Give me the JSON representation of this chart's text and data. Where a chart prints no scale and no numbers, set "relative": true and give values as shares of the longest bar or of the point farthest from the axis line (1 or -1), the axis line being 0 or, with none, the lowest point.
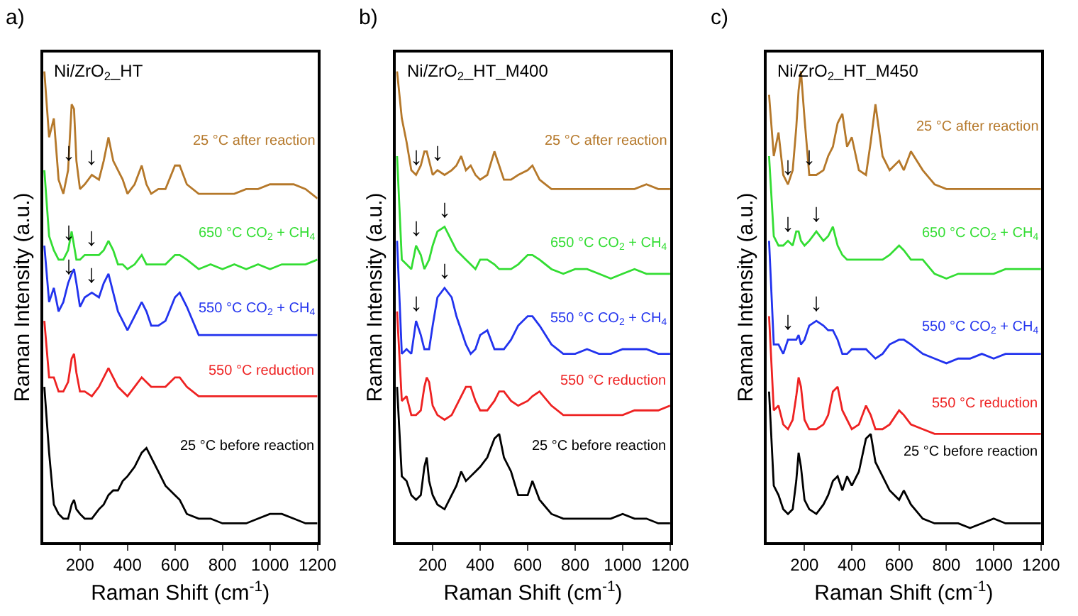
{
  "chart_data": [
    {
      "type": "line",
      "relative": true,
      "title": "Ni/ZrO$_{2}$_HT",
      "xlabel": "Raman Shift (cm$^{-1}$)",
      "ylabel": "Raman Intensity (a.u.)",
      "xlim": [
        45,
        1200
      ],
      "xticks": [
        200,
        400,
        600,
        800,
        1000,
        1200
      ],
      "legend": false,
      "x": [
        50,
        70,
        90,
        110,
        130,
        150,
        165,
        175,
        185,
        200,
        220,
        250,
        280,
        300,
        320,
        340,
        360,
        380,
        400,
        430,
        460,
        480,
        500,
        530,
        560,
        600,
        620,
        650,
        700,
        750,
        800,
        850,
        900,
        950,
        1000,
        1050,
        1100,
        1150,
        1200
      ],
      "annotations": [
        "a)",
        {
          "text": "↓",
          "x": 150,
          "y": 0.79
        },
        {
          "text": "↓",
          "x": 250,
          "y": 0.78
        },
        {
          "text": "↓",
          "x": 150,
          "y": 0.62
        },
        {
          "text": "↓",
          "x": 250,
          "y": 0.61
        },
        {
          "text": "↓",
          "x": 150,
          "y": 0.55
        },
        {
          "text": "↓",
          "x": 250,
          "y": 0.53
        }
      ],
      "series": [
        {
          "name": "25 °C after reaction",
          "color": "#b5782a",
          "values": [
            1.0,
            0.86,
            0.9,
            0.77,
            0.74,
            0.79,
            0.93,
            0.92,
            0.81,
            0.75,
            0.76,
            0.78,
            0.77,
            0.81,
            0.86,
            0.81,
            0.79,
            0.77,
            0.74,
            0.76,
            0.8,
            0.76,
            0.74,
            0.75,
            0.75,
            0.8,
            0.8,
            0.76,
            0.74,
            0.74,
            0.74,
            0.74,
            0.75,
            0.75,
            0.76,
            0.76,
            0.76,
            0.75,
            0.73
          ]
        },
        {
          "name": "650 °C CO$_{2}$ + CH$_{4}$",
          "color": "#33dd33",
          "values": [
            0.79,
            0.65,
            0.62,
            0.6,
            0.6,
            0.62,
            0.66,
            0.63,
            0.6,
            0.6,
            0.61,
            0.61,
            0.61,
            0.62,
            0.64,
            0.62,
            0.59,
            0.59,
            0.58,
            0.59,
            0.61,
            0.59,
            0.59,
            0.59,
            0.59,
            0.61,
            0.61,
            0.6,
            0.58,
            0.59,
            0.58,
            0.59,
            0.58,
            0.59,
            0.58,
            0.59,
            0.59,
            0.59,
            0.6
          ]
        },
        {
          "name": "550 °C CO$_{2}$ + CH$_{4}$",
          "color": "#2233ee",
          "values": [
            0.63,
            0.51,
            0.54,
            0.49,
            0.51,
            0.55,
            0.57,
            0.58,
            0.55,
            0.5,
            0.52,
            0.53,
            0.52,
            0.55,
            0.57,
            0.53,
            0.49,
            0.47,
            0.45,
            0.48,
            0.51,
            0.49,
            0.46,
            0.46,
            0.47,
            0.52,
            0.53,
            0.5,
            0.44,
            0.44,
            0.44,
            0.44,
            0.44,
            0.44,
            0.44,
            0.44,
            0.44,
            0.44,
            0.44
          ]
        },
        {
          "name": "550 °C reduction",
          "color": "#ee2222",
          "values": [
            0.47,
            0.35,
            0.35,
            0.32,
            0.32,
            0.34,
            0.39,
            0.4,
            0.36,
            0.32,
            0.32,
            0.31,
            0.33,
            0.35,
            0.37,
            0.35,
            0.33,
            0.32,
            0.31,
            0.33,
            0.35,
            0.34,
            0.33,
            0.33,
            0.33,
            0.35,
            0.35,
            0.33,
            0.31,
            0.31,
            0.31,
            0.31,
            0.31,
            0.31,
            0.31,
            0.31,
            0.31,
            0.31,
            0.31
          ]
        },
        {
          "name": "25 °C before reaction",
          "color": "#000000",
          "values": [
            0.33,
            0.19,
            0.08,
            0.06,
            0.05,
            0.05,
            0.08,
            0.09,
            0.07,
            0.06,
            0.05,
            0.05,
            0.07,
            0.08,
            0.1,
            0.11,
            0.11,
            0.13,
            0.14,
            0.16,
            0.19,
            0.2,
            0.18,
            0.15,
            0.12,
            0.1,
            0.09,
            0.06,
            0.05,
            0.05,
            0.04,
            0.04,
            0.04,
            0.05,
            0.06,
            0.06,
            0.05,
            0.04,
            0.04
          ]
        }
      ]
    },
    {
      "type": "line",
      "relative": true,
      "title": "Ni/ZrO$_{2}$_HT_M400",
      "xlabel": "Raman Shift (cm$^{-1}$)",
      "ylabel": "Raman Intensity (a.u.)",
      "xlim": [
        45,
        1200
      ],
      "xticks": [
        200,
        400,
        600,
        800,
        1000,
        1200
      ],
      "legend": false,
      "x": [
        50,
        70,
        90,
        110,
        130,
        150,
        165,
        175,
        185,
        200,
        220,
        250,
        280,
        300,
        320,
        340,
        360,
        380,
        400,
        430,
        460,
        480,
        500,
        530,
        560,
        600,
        620,
        650,
        700,
        750,
        800,
        850,
        900,
        950,
        1000,
        1050,
        1100,
        1150,
        1200
      ],
      "annotations": [
        "b)",
        {
          "text": "↓",
          "x": 130,
          "y": 0.78
        },
        {
          "text": "↓",
          "x": 220,
          "y": 0.79
        },
        {
          "text": "↓",
          "x": 130,
          "y": 0.63
        },
        {
          "text": "↓",
          "x": 250,
          "y": 0.67
        },
        {
          "text": "↓",
          "x": 130,
          "y": 0.47
        },
        {
          "text": "↓",
          "x": 250,
          "y": 0.54
        }
      ],
      "series": [
        {
          "name": "25 °C after reaction",
          "color": "#b5782a",
          "values": [
            1.0,
            0.9,
            0.85,
            0.79,
            0.78,
            0.8,
            0.83,
            0.83,
            0.81,
            0.78,
            0.79,
            0.78,
            0.79,
            0.8,
            0.82,
            0.79,
            0.8,
            0.78,
            0.77,
            0.78,
            0.83,
            0.8,
            0.77,
            0.77,
            0.78,
            0.79,
            0.8,
            0.77,
            0.75,
            0.75,
            0.75,
            0.75,
            0.75,
            0.75,
            0.75,
            0.75,
            0.76,
            0.75,
            0.75
          ]
        },
        {
          "name": "650 °C CO$_{2}$ + CH$_{4}$",
          "color": "#33dd33",
          "values": [
            0.82,
            0.6,
            0.59,
            0.58,
            0.63,
            0.61,
            0.58,
            0.59,
            0.6,
            0.63,
            0.66,
            0.67,
            0.64,
            0.62,
            0.61,
            0.6,
            0.59,
            0.58,
            0.6,
            0.6,
            0.59,
            0.58,
            0.58,
            0.58,
            0.59,
            0.61,
            0.61,
            0.6,
            0.58,
            0.57,
            0.58,
            0.58,
            0.57,
            0.56,
            0.57,
            0.58,
            0.57,
            0.57,
            0.57
          ]
        },
        {
          "name": "550 °C CO$_{2}$ + CH$_{4}$",
          "color": "#2233ee",
          "values": [
            0.64,
            0.4,
            0.41,
            0.4,
            0.47,
            0.44,
            0.41,
            0.41,
            0.41,
            0.46,
            0.52,
            0.54,
            0.52,
            0.48,
            0.45,
            0.42,
            0.4,
            0.41,
            0.44,
            0.45,
            0.41,
            0.41,
            0.41,
            0.43,
            0.46,
            0.48,
            0.48,
            0.46,
            0.42,
            0.4,
            0.4,
            0.41,
            0.4,
            0.4,
            0.41,
            0.41,
            0.41,
            0.4,
            0.4
          ]
        },
        {
          "name": "550 °C reduction",
          "color": "#ee2222",
          "values": [
            0.49,
            0.3,
            0.31,
            0.27,
            0.27,
            0.28,
            0.33,
            0.35,
            0.34,
            0.29,
            0.27,
            0.26,
            0.27,
            0.29,
            0.31,
            0.33,
            0.33,
            0.3,
            0.28,
            0.28,
            0.3,
            0.32,
            0.32,
            0.3,
            0.29,
            0.3,
            0.31,
            0.32,
            0.29,
            0.27,
            0.27,
            0.27,
            0.27,
            0.27,
            0.27,
            0.28,
            0.28,
            0.28,
            0.29
          ]
        },
        {
          "name": "25 °C before reaction",
          "color": "#000000",
          "values": [
            0.33,
            0.14,
            0.13,
            0.1,
            0.09,
            0.1,
            0.16,
            0.18,
            0.13,
            0.1,
            0.08,
            0.07,
            0.1,
            0.12,
            0.15,
            0.13,
            0.14,
            0.15,
            0.16,
            0.18,
            0.22,
            0.23,
            0.18,
            0.15,
            0.1,
            0.1,
            0.13,
            0.09,
            0.06,
            0.05,
            0.05,
            0.05,
            0.05,
            0.05,
            0.06,
            0.05,
            0.05,
            0.04,
            0.04
          ]
        }
      ]
    },
    {
      "type": "line",
      "relative": true,
      "title": "Ni/ZrO$_{2}$_HT_M450",
      "xlabel": "Raman Shift (cm$^{-1}$)",
      "ylabel": "Raman Intensity (a.u.)",
      "xlim": [
        40,
        1200
      ],
      "xticks": [
        200,
        400,
        600,
        800,
        1000,
        1200
      ],
      "legend": false,
      "x": [
        50,
        70,
        90,
        110,
        130,
        150,
        165,
        175,
        185,
        200,
        220,
        250,
        280,
        300,
        320,
        340,
        360,
        380,
        400,
        430,
        460,
        480,
        500,
        530,
        560,
        600,
        620,
        650,
        700,
        750,
        800,
        850,
        900,
        950,
        1000,
        1050,
        1100,
        1150,
        1200
      ],
      "annotations": [
        "c)",
        {
          "text": "↓",
          "x": 130,
          "y": 0.76
        },
        {
          "text": "↓",
          "x": 220,
          "y": 0.78
        },
        {
          "text": "↓",
          "x": 130,
          "y": 0.64
        },
        {
          "text": "↓",
          "x": 250,
          "y": 0.66
        },
        {
          "text": "↓",
          "x": 130,
          "y": 0.43
        },
        {
          "text": "↓",
          "x": 250,
          "y": 0.47
        }
      ],
      "series": [
        {
          "name": "25 °C after reaction",
          "color": "#b5782a",
          "values": [
            0.95,
            0.82,
            0.87,
            0.78,
            0.76,
            0.79,
            0.88,
            0.96,
            1.0,
            0.9,
            0.78,
            0.78,
            0.79,
            0.82,
            0.84,
            0.89,
            0.91,
            0.84,
            0.86,
            0.79,
            0.78,
            0.85,
            0.93,
            0.82,
            0.79,
            0.81,
            0.79,
            0.83,
            0.79,
            0.76,
            0.75,
            0.75,
            0.75,
            0.75,
            0.75,
            0.75,
            0.75,
            0.75,
            0.75
          ]
        },
        {
          "name": "650 °C CO$_{2}$ + CH$_{4}$",
          "color": "#33dd33",
          "values": [
            0.82,
            0.65,
            0.63,
            0.63,
            0.64,
            0.63,
            0.66,
            0.66,
            0.64,
            0.63,
            0.64,
            0.66,
            0.64,
            0.65,
            0.67,
            0.63,
            0.61,
            0.6,
            0.6,
            0.6,
            0.6,
            0.6,
            0.6,
            0.6,
            0.61,
            0.63,
            0.62,
            0.6,
            0.6,
            0.57,
            0.56,
            0.57,
            0.57,
            0.57,
            0.57,
            0.58,
            0.58,
            0.58,
            0.58
          ]
        },
        {
          "name": "550 °C CO$_{2}$ + CH$_{4}$",
          "color": "#2233ee",
          "values": [
            0.64,
            0.42,
            0.42,
            0.4,
            0.43,
            0.43,
            0.43,
            0.44,
            0.42,
            0.43,
            0.46,
            0.47,
            0.46,
            0.45,
            0.45,
            0.43,
            0.4,
            0.4,
            0.41,
            0.41,
            0.41,
            0.4,
            0.39,
            0.4,
            0.42,
            0.43,
            0.43,
            0.42,
            0.4,
            0.39,
            0.38,
            0.39,
            0.39,
            0.4,
            0.39,
            0.4,
            0.4,
            0.4,
            0.4
          ]
        },
        {
          "name": "550 °C reduction",
          "color": "#ee2222",
          "values": [
            0.48,
            0.28,
            0.29,
            0.25,
            0.24,
            0.26,
            0.31,
            0.35,
            0.33,
            0.26,
            0.24,
            0.24,
            0.25,
            0.27,
            0.32,
            0.33,
            0.28,
            0.26,
            0.24,
            0.25,
            0.29,
            0.27,
            0.24,
            0.24,
            0.25,
            0.28,
            0.27,
            0.25,
            0.24,
            0.23,
            0.23,
            0.23,
            0.23,
            0.23,
            0.23,
            0.23,
            0.23,
            0.23,
            0.23
          ]
        },
        {
          "name": "25 °C before reaction",
          "color": "#000000",
          "values": [
            0.32,
            0.12,
            0.1,
            0.07,
            0.06,
            0.07,
            0.13,
            0.19,
            0.16,
            0.09,
            0.07,
            0.06,
            0.08,
            0.1,
            0.13,
            0.14,
            0.11,
            0.14,
            0.12,
            0.15,
            0.22,
            0.23,
            0.17,
            0.14,
            0.11,
            0.09,
            0.11,
            0.08,
            0.05,
            0.04,
            0.04,
            0.04,
            0.03,
            0.04,
            0.05,
            0.04,
            0.04,
            0.04,
            0.04
          ]
        }
      ]
    }
  ]
}
